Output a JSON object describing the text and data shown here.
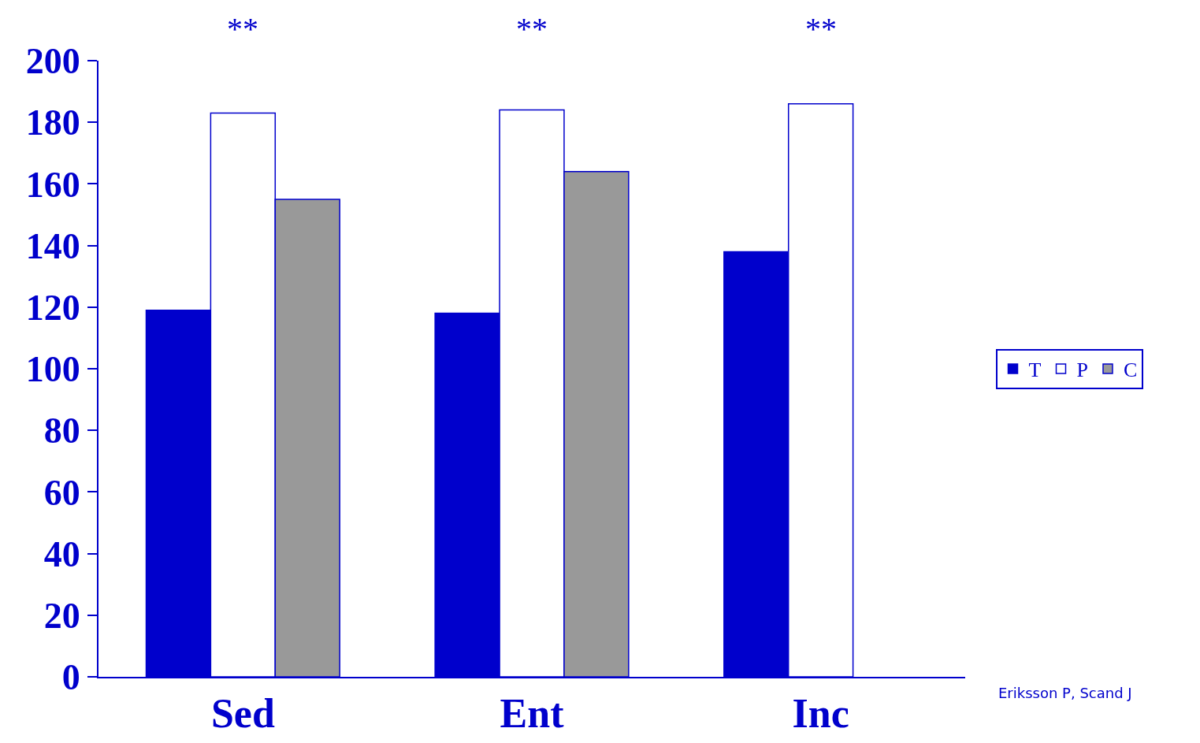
{
  "chart_data": {
    "type": "bar",
    "categories": [
      "Sed",
      "Ent",
      "Inc"
    ],
    "series": [
      {
        "name": "T",
        "color": "#0000cc",
        "values": [
          119,
          118,
          138
        ]
      },
      {
        "name": "P",
        "color": "#ffffff",
        "values": [
          183,
          184,
          186
        ]
      },
      {
        "name": "C",
        "color": "#999999",
        "values": [
          155,
          164,
          null
        ]
      }
    ],
    "ylim": [
      0,
      200
    ],
    "yticks": [
      0,
      20,
      40,
      60,
      80,
      100,
      120,
      140,
      160,
      180,
      200
    ],
    "grid": false,
    "legend": "right",
    "annotations": [
      "**",
      "**",
      "**",
      "Eriksson P, Scand J"
    ]
  }
}
